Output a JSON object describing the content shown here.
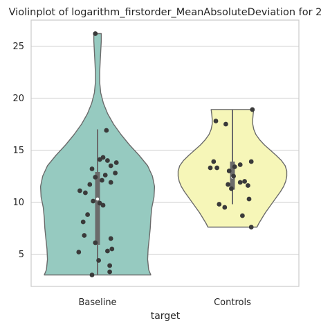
{
  "chart_data": {
    "type": "violin",
    "title": "Violinplot of logarithm_firstorder_MeanAbsoluteDeviation for 2",
    "xlabel": "target",
    "ylabel": "",
    "categories": [
      "Baseline",
      "Controls"
    ],
    "ylim": [
      1.9,
      27.5
    ],
    "yticks": [
      "5",
      "10",
      "15",
      "20",
      "25"
    ],
    "grid": true,
    "colors": {
      "Baseline": "#96cac0",
      "Controls": "#f6f6b8"
    },
    "series": [
      {
        "category": "Baseline",
        "color": "#96cac0",
        "min": 3.0,
        "max": 26.2,
        "q1": 5.9,
        "median": 10.3,
        "q3": 12.9,
        "whisker_low": 3.0,
        "whisker_high": 17.0,
        "density": [
          [
            3.0,
            1.0
          ],
          [
            3.5,
            0.96
          ],
          [
            4.5,
            0.94
          ],
          [
            5.5,
            0.95
          ],
          [
            6.5,
            0.97
          ],
          [
            7.5,
            0.99
          ],
          [
            8.5,
            1.0
          ],
          [
            9.5,
            1.02
          ],
          [
            10.5,
            1.06
          ],
          [
            11.5,
            1.07
          ],
          [
            12.5,
            1.03
          ],
          [
            13.5,
            0.94
          ],
          [
            14.5,
            0.78
          ],
          [
            15.5,
            0.6
          ],
          [
            16.5,
            0.44
          ],
          [
            17.5,
            0.3
          ],
          [
            18.5,
            0.19
          ],
          [
            19.5,
            0.11
          ],
          [
            20.5,
            0.06
          ],
          [
            21.5,
            0.04
          ],
          [
            22.5,
            0.04
          ],
          [
            23.5,
            0.05
          ],
          [
            24.5,
            0.06
          ],
          [
            25.5,
            0.07
          ],
          [
            26.2,
            0.07
          ]
        ],
        "points": [
          [
            -0.02,
            26.2
          ],
          [
            0.08,
            16.9
          ],
          [
            0.05,
            14.3
          ],
          [
            0.02,
            14.1
          ],
          [
            0.09,
            14.0
          ],
          [
            0.17,
            13.8
          ],
          [
            0.12,
            13.5
          ],
          [
            -0.05,
            13.2
          ],
          [
            0.16,
            12.8
          ],
          [
            0.07,
            12.6
          ],
          [
            -0.02,
            12.4
          ],
          [
            0.04,
            12.1
          ],
          [
            0.12,
            11.9
          ],
          [
            -0.07,
            11.7
          ],
          [
            -0.16,
            11.1
          ],
          [
            -0.11,
            10.9
          ],
          [
            -0.04,
            10.1
          ],
          [
            0.02,
            9.9
          ],
          [
            0.05,
            9.7
          ],
          [
            -0.09,
            8.8
          ],
          [
            -0.13,
            8.1
          ],
          [
            -0.12,
            6.8
          ],
          [
            0.12,
            6.5
          ],
          [
            -0.02,
            6.1
          ],
          [
            0.13,
            5.5
          ],
          [
            0.09,
            5.3
          ],
          [
            -0.17,
            5.2
          ],
          [
            0.01,
            4.4
          ],
          [
            0.11,
            3.9
          ],
          [
            0.11,
            3.3
          ],
          [
            -0.05,
            3.0
          ]
        ]
      },
      {
        "category": "Controls",
        "color": "#f6f6b8",
        "min": 7.6,
        "max": 18.9,
        "q1": 11.2,
        "median": 12.4,
        "q3": 13.9,
        "whisker_low": 9.8,
        "whisker_high": 18.9,
        "density": [
          [
            7.6,
            0.46
          ],
          [
            8.0,
            0.5
          ],
          [
            8.5,
            0.56
          ],
          [
            9.0,
            0.62
          ],
          [
            9.5,
            0.69
          ],
          [
            10.0,
            0.76
          ],
          [
            10.5,
            0.83
          ],
          [
            11.0,
            0.9
          ],
          [
            11.5,
            0.96
          ],
          [
            12.0,
            1.0
          ],
          [
            12.5,
            1.02
          ],
          [
            13.0,
            1.02
          ],
          [
            13.5,
            0.99
          ],
          [
            14.0,
            0.92
          ],
          [
            14.5,
            0.82
          ],
          [
            15.0,
            0.71
          ],
          [
            15.5,
            0.6
          ],
          [
            16.0,
            0.51
          ],
          [
            16.5,
            0.44
          ],
          [
            17.0,
            0.4
          ],
          [
            17.5,
            0.38
          ],
          [
            18.0,
            0.38
          ],
          [
            18.5,
            0.39
          ],
          [
            18.9,
            0.4
          ]
        ],
        "points": [
          [
            0.18,
            18.9
          ],
          [
            -0.15,
            17.8
          ],
          [
            -0.06,
            17.5
          ],
          [
            -0.17,
            13.9
          ],
          [
            0.17,
            13.9
          ],
          [
            0.07,
            13.6
          ],
          [
            0.02,
            13.4
          ],
          [
            -0.2,
            13.3
          ],
          [
            -0.14,
            13.3
          ],
          [
            -0.03,
            13.0
          ],
          [
            0.01,
            12.5
          ],
          [
            0.11,
            12.0
          ],
          [
            0.07,
            11.9
          ],
          [
            -0.04,
            11.7
          ],
          [
            0.14,
            11.6
          ],
          [
            -0.01,
            11.3
          ],
          [
            0.15,
            10.3
          ],
          [
            -0.12,
            9.8
          ],
          [
            -0.07,
            9.5
          ],
          [
            0.09,
            8.7
          ],
          [
            0.17,
            7.6
          ]
        ]
      }
    ]
  }
}
